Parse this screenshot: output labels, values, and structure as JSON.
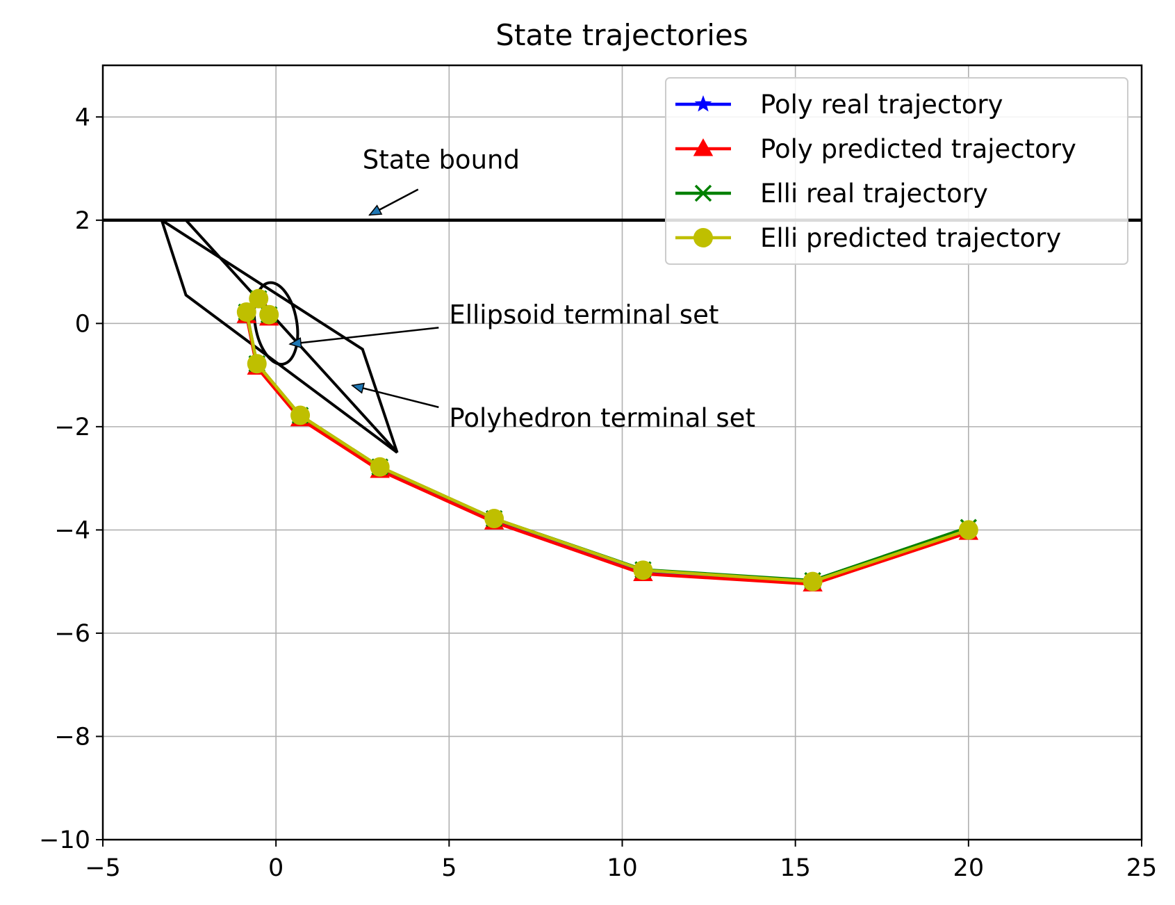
{
  "chart_data": {
    "type": "line",
    "title": "State trajectories",
    "xlabel": "",
    "ylabel": "",
    "xlim": [
      -5,
      25
    ],
    "ylim": [
      -10,
      5
    ],
    "xticks": [
      -5,
      0,
      5,
      10,
      15,
      20,
      25
    ],
    "yticks": [
      -10,
      -8,
      -6,
      -4,
      -2,
      0,
      2,
      4
    ],
    "xtick_labels": [
      "−5",
      "0",
      "5",
      "10",
      "15",
      "20",
      "25"
    ],
    "ytick_labels": [
      "−10",
      "−8",
      "−6",
      "−4",
      "−2",
      "0",
      "2",
      "4"
    ],
    "grid": true,
    "legend_position": "top-right",
    "series": [
      {
        "name": "Poly real trajectory",
        "color": "#0000ff",
        "marker": "star",
        "x": [
          20,
          15.5,
          10.6,
          6.3,
          3.0,
          0.7,
          -0.55,
          -0.85,
          -0.5,
          -0.2
        ],
        "y": [
          -4.0,
          -5.0,
          -4.8,
          -3.8,
          -2.8,
          -1.8,
          -0.8,
          0.2,
          0.5,
          0.15
        ]
      },
      {
        "name": "Poly predicted trajectory",
        "color": "#ff0000",
        "marker": "triangle",
        "x": [
          20,
          15.5,
          10.6,
          6.3,
          3.0,
          0.7,
          -0.55,
          -0.85,
          -0.5,
          -0.2
        ],
        "y": [
          -4.05,
          -5.05,
          -4.85,
          -3.85,
          -2.85,
          -1.85,
          -0.85,
          0.15,
          0.45,
          0.1
        ]
      },
      {
        "name": "Elli real trajectory",
        "color": "#008000",
        "marker": "x",
        "x": [
          20,
          15.5,
          10.6,
          6.3,
          3.0,
          0.7,
          -0.55,
          -0.85,
          -0.5,
          -0.2
        ],
        "y": [
          -3.95,
          -4.98,
          -4.77,
          -3.78,
          -2.78,
          -1.78,
          -0.78,
          0.22,
          0.48,
          0.17
        ]
      },
      {
        "name": "Elli predicted trajectory",
        "color": "#bfbf00",
        "marker": "circle",
        "x": [
          20,
          15.5,
          10.6,
          6.3,
          3.0,
          0.7,
          -0.55,
          -0.85,
          -0.5,
          -0.2
        ],
        "y": [
          -4.0,
          -5.0,
          -4.78,
          -3.78,
          -2.78,
          -1.78,
          -0.78,
          0.22,
          0.48,
          0.17
        ]
      }
    ],
    "state_bound": {
      "y": 2
    },
    "polyhedron": {
      "x": [
        -3.3,
        -2.6,
        3.5,
        2.5,
        -3.3
      ],
      "y": [
        2.0,
        2.0,
        -2.5,
        -0.5,
        2.0
      ],
      "x_inner": [
        -3.3,
        -2.6,
        3.5
      ],
      "y_inner": [
        2.0,
        0.55,
        -2.5
      ]
    },
    "ellipsoid": {
      "cx": 0.0,
      "cy": 0.0,
      "rx": 0.6,
      "ry": 0.8,
      "tilt_deg": -10
    },
    "annotations": [
      {
        "text": "State bound",
        "text_x": 2.5,
        "text_y": 3.0,
        "arrow_x": 2.7,
        "arrow_y": 2.1
      },
      {
        "text": "Ellipsoid terminal set",
        "text_x": 5.0,
        "text_y": 0.0,
        "arrow_x": 0.4,
        "arrow_y": -0.4
      },
      {
        "text": "Polyhedron terminal set",
        "text_x": 5.0,
        "text_y": -2.0,
        "arrow_x": 2.2,
        "arrow_y": -1.2
      }
    ]
  }
}
